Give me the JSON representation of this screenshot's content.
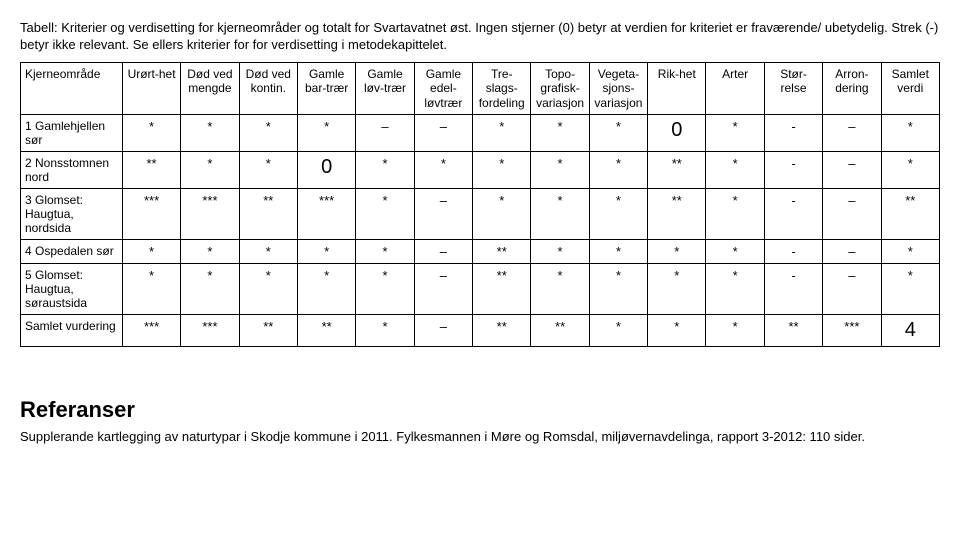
{
  "caption": "Tabell: Kriterier og verdisetting for kjerneområder og totalt for Svartavatnet øst. Ingen stjerner (0) betyr at verdien for kriteriet er fraværende/ ubetydelig. Strek (-) betyr ikke relevant. Se ellers kriterier for for verdisetting i metodekapittelet.",
  "headers": [
    "Kjerneområde",
    "Urørt-het",
    "Død ved mengde",
    "Død ved kontin.",
    "Gamle bar-trær",
    "Gamle løv-trær",
    "Gamle edel-løvtrær",
    "Tre-slags-fordeling",
    "Topo-grafisk-variasjon",
    "Vegeta-sjons-variasjon",
    "Rik-het",
    "Arter",
    "Stør-relse",
    "Arron-dering",
    "Samlet verdi"
  ],
  "rows": [
    {
      "label": "1 Gamlehjellen sør",
      "cells": [
        "*",
        "*",
        "*",
        "*",
        "–",
        "–",
        "*",
        "*",
        "*",
        "0",
        "*",
        "-",
        "–",
        "*"
      ],
      "big": [
        9
      ]
    },
    {
      "label": "2 Nonsstomnen nord",
      "cells": [
        "**",
        "*",
        "*",
        "0",
        "*",
        "*",
        "*",
        "*",
        "*",
        "**",
        "*",
        "-",
        "–",
        "*"
      ],
      "big": [
        3
      ]
    },
    {
      "label": "3 Glomset: Haugtua, nordsida",
      "cells": [
        "***",
        "***",
        "**",
        "***",
        "*",
        "–",
        "*",
        "*",
        "*",
        "**",
        "*",
        "-",
        "–",
        "**"
      ],
      "big": []
    },
    {
      "label": "4 Ospedalen sør",
      "cells": [
        "*",
        "*",
        "*",
        "*",
        "*",
        "–",
        "**",
        "*",
        "*",
        "*",
        "*",
        "-",
        "–",
        "*"
      ],
      "big": []
    },
    {
      "label": "5 Glomset: Haugtua, søraustsida",
      "cells": [
        "*",
        "*",
        "*",
        "*",
        "*",
        "–",
        "**",
        "*",
        "*",
        "*",
        "*",
        "-",
        "–",
        "*"
      ],
      "big": []
    },
    {
      "label": "Samlet vurdering",
      "cells": [
        "***",
        "***",
        "**",
        "**",
        "*",
        "–",
        "**",
        "**",
        "*",
        "*",
        "*",
        "**",
        "***",
        "4"
      ],
      "big": [
        13
      ]
    }
  ],
  "refs": {
    "title": "Referanser",
    "body": "Supplerande kartlegging av naturtypar i Skodje kommune i 2011. Fylkesmannen i Møre og Romsdal, miljøvernavdelinga, rapport 3-2012: 110 sider."
  }
}
